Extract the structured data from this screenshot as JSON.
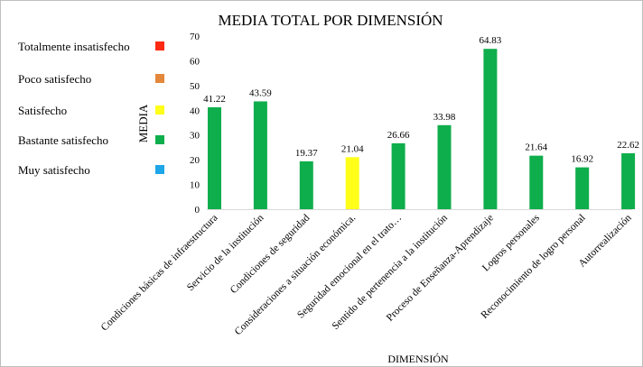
{
  "chart_data": {
    "type": "bar",
    "title": "MEDIA TOTAL POR DIMENSIÓN",
    "xlabel": "DIMENSIÓN",
    "ylabel": "MEDIA",
    "ylim": [
      0,
      70
    ],
    "yticks": [
      0,
      10,
      20,
      30,
      40,
      50,
      60,
      70
    ],
    "grid": false,
    "legend_position": "left",
    "legend": [
      {
        "label": "Totalmente insatisfecho",
        "color": "#ff2a12"
      },
      {
        "label": "Poco satisfecho",
        "color": "#e3873a"
      },
      {
        "label": "Satisfecho",
        "color": "#ffff1a"
      },
      {
        "label": "Bastante satisfecho",
        "color": "#0fae4c"
      },
      {
        "label": "Muy satisfecho",
        "color": "#1fa6e8"
      }
    ],
    "categories": [
      "Condiciones básicas de infraestructura",
      "Servicio de la institución",
      "Condiciones de seguridad",
      "Consideraciones a situación económica.",
      "Seguridad emocional en el trato…",
      "Sentido de pertenencia a la institución",
      "Proceso de Enseñanza-Aprendizaje",
      "Logros personales",
      "Reconocimiento de logro personal",
      "Autorrealización"
    ],
    "values": [
      41.22,
      43.59,
      19.37,
      21.04,
      26.66,
      33.98,
      64.83,
      21.64,
      16.92,
      22.62
    ],
    "value_labels": [
      "41.22",
      "43.59",
      "19.37",
      "21.04",
      "26.66",
      "33.98",
      "64.83",
      "21.64",
      "16.92",
      "22.62"
    ],
    "bar_colors": [
      "#0fae4c",
      "#0fae4c",
      "#0fae4c",
      "#ffff1a",
      "#0fae4c",
      "#0fae4c",
      "#0fae4c",
      "#0fae4c",
      "#0fae4c",
      "#0fae4c"
    ]
  }
}
